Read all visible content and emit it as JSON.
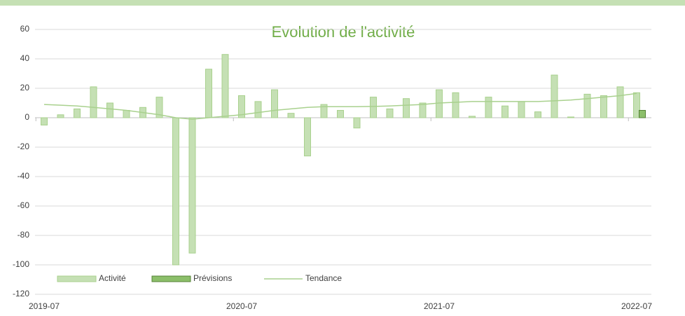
{
  "chart_data": {
    "type": "bar",
    "title": "Evolution de l'activité",
    "categories": [
      "2019-07",
      null,
      null,
      null,
      null,
      null,
      null,
      null,
      null,
      null,
      null,
      null,
      "2020-07",
      null,
      null,
      null,
      null,
      null,
      null,
      null,
      null,
      null,
      null,
      null,
      "2021-07",
      null,
      null,
      null,
      null,
      null,
      null,
      null,
      null,
      null,
      null,
      null,
      "2022-07"
    ],
    "series": [
      {
        "name": "Activité",
        "color": "#c5e0b4",
        "border": "#a9d18e",
        "values": [
          -5,
          2,
          6,
          21,
          10,
          5,
          7,
          14,
          -100,
          -92,
          33,
          43,
          15,
          11,
          19,
          3,
          -26,
          9,
          5,
          -7,
          14,
          6,
          13,
          10,
          19,
          17,
          1,
          14,
          8,
          11,
          4,
          29,
          0.5,
          16,
          15,
          21,
          17
        ]
      },
      {
        "name": "Prévisions",
        "color": "#8cbf6a",
        "border": "#548235",
        "values": [
          null,
          null,
          null,
          null,
          null,
          null,
          null,
          null,
          null,
          null,
          null,
          null,
          null,
          null,
          null,
          null,
          null,
          null,
          null,
          null,
          null,
          null,
          null,
          null,
          null,
          null,
          null,
          null,
          null,
          null,
          null,
          null,
          null,
          null,
          null,
          null,
          5
        ]
      },
      {
        "name": "Tendance",
        "type": "line",
        "color": "#a9d18e",
        "values": [
          9,
          8.5,
          8,
          7,
          6,
          5,
          3.5,
          2,
          0,
          -1,
          0,
          1,
          2,
          3.5,
          5,
          6,
          7,
          7.5,
          7.5,
          7.5,
          7.7,
          8,
          8.5,
          9,
          10,
          10.5,
          11,
          11,
          11,
          11,
          11,
          11.5,
          12,
          13,
          14,
          15,
          16.5
        ]
      }
    ],
    "ylim": [
      -120,
      60
    ],
    "yticks": [
      -120,
      -100,
      -80,
      -60,
      -40,
      -20,
      0,
      20,
      40,
      60
    ],
    "grid": true,
    "legend": "bottom"
  }
}
